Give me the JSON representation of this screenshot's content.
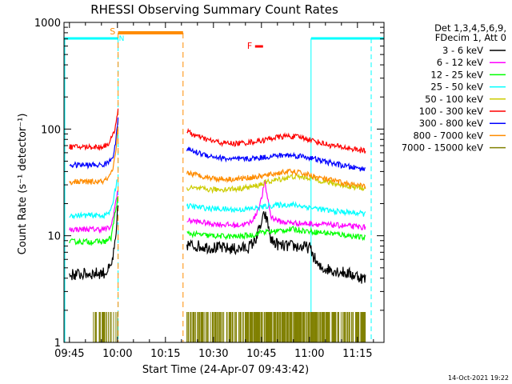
{
  "chart_data": {
    "type": "line",
    "title": "RHESSI Observing Summary Count Rates",
    "xlabel": "Start Time (24-Apr-07 09:43:42)",
    "ylabel": "Count Rate (s⁻¹ detector⁻¹)",
    "yscale": "log",
    "xlim_minutes": [
      -1.7,
      98.3
    ],
    "ylim": [
      1,
      1000
    ],
    "x_ticks": [
      {
        "label": "09:45",
        "t": 0
      },
      {
        "label": "10:00",
        "t": 15
      },
      {
        "label": "10:15",
        "t": 30
      },
      {
        "label": "10:30",
        "t": 45
      },
      {
        "label": "10:45",
        "t": 60
      },
      {
        "label": "11:00",
        "t": 75
      },
      {
        "label": "11:15",
        "t": 90
      }
    ],
    "y_ticks": [
      {
        "label": "1",
        "v": 1
      },
      {
        "label": "10",
        "v": 10
      },
      {
        "label": "100",
        "v": 100
      },
      {
        "label": "1000",
        "v": 1000
      }
    ],
    "legend": {
      "placement": "top-right",
      "header": [
        "Det 1,3,4,5,6,9,",
        "FDecim 1, Att 0"
      ]
    },
    "series": [
      {
        "name": "3 - 6 keV",
        "color": "#000000",
        "segments": [
          {
            "t": [
              0,
              11,
              13,
              14.5,
              15.2
            ],
            "v": [
              4.3,
              4.5,
              5,
              9,
              20
            ]
          },
          {
            "t": [
              36.7,
              44,
              52,
              56,
              58,
              60,
              61,
              62,
              63,
              66,
              70,
              73,
              75,
              78,
              82,
              86,
              90,
              92.5
            ],
            "v": [
              8.2,
              7.8,
              7.5,
              7.8,
              9,
              13,
              16,
              13,
              9,
              8,
              8,
              7.8,
              7.8,
              5,
              4.8,
              4.5,
              4.2,
              3.9
            ]
          }
        ]
      },
      {
        "name": "6 - 12 keV",
        "color": "#ff00ff",
        "segments": [
          {
            "t": [
              0,
              11,
              13,
              15
            ],
            "v": [
              11.5,
              11.5,
              12,
              25
            ]
          },
          {
            "t": [
              36.7,
              44,
              52,
              56,
              58,
              60,
              61,
              62,
              63,
              66,
              70,
              73,
              75,
              78,
              82,
              86,
              90,
              92.5
            ],
            "v": [
              14,
              13,
              12.5,
              13,
              15,
              22,
              32,
              22,
              15,
              13.5,
              13.2,
              13,
              13,
              12.8,
              12.6,
              12.4,
              12.1,
              12
            ]
          }
        ]
      },
      {
        "name": "12 - 25 keV",
        "color": "#00ff00",
        "segments": [
          {
            "t": [
              0,
              11,
              13,
              15
            ],
            "v": [
              8.8,
              8.8,
              9.5,
              22
            ]
          },
          {
            "t": [
              36.7,
              44,
              52,
              58,
              60,
              62,
              66,
              70,
              75,
              82,
              88,
              92.5
            ],
            "v": [
              10.5,
              10,
              9.8,
              10.2,
              11,
              10.8,
              11.2,
              11.5,
              11,
              10.5,
              10,
              9.5
            ]
          }
        ]
      },
      {
        "name": "25 - 50 keV",
        "color": "#00ffff",
        "segments": [
          {
            "t": [
              0,
              11,
              13,
              15
            ],
            "v": [
              15.5,
              15.5,
              17,
              35
            ]
          },
          {
            "t": [
              36.7,
              44,
              52,
              58,
              62,
              66,
              70,
              75,
              82,
              88,
              92.5
            ],
            "v": [
              19,
              18,
              17.5,
              18,
              19,
              19.5,
              19.5,
              18.5,
              17,
              16.5,
              16
            ]
          }
        ]
      },
      {
        "name": "50 - 100 keV",
        "color": "#cccc00",
        "segments": [
          {
            "t": [
              36.7,
              44,
              52,
              58,
              62,
              66,
              70,
              75,
              82,
              88,
              92.5
            ],
            "v": [
              28,
              27,
              27.5,
              29,
              32,
              34,
              36,
              35,
              31,
              29,
              28
            ]
          }
        ]
      },
      {
        "name": "100 - 300 keV",
        "color": "#ff0000",
        "segments": [
          {
            "t": [
              0,
              10,
              12,
              13.5,
              14.5,
              15.2
            ],
            "v": [
              68,
              68,
              72,
              85,
              110,
              160
            ]
          },
          {
            "t": [
              36.7,
              40,
              44,
              48,
              52,
              56,
              60,
              64,
              68,
              72,
              75,
              78,
              82,
              86,
              90,
              92.5
            ],
            "v": [
              95,
              85,
              78,
              74,
              73,
              75,
              78,
              83,
              86,
              84,
              80,
              75,
              70,
              67,
              64,
              62
            ]
          }
        ]
      },
      {
        "name": "300 - 800 keV",
        "color": "#0000ff",
        "segments": [
          {
            "t": [
              0,
              10,
              12,
              13.5,
              14.5,
              15.2
            ],
            "v": [
              46,
              46,
              48,
              55,
              75,
              130
            ]
          },
          {
            "t": [
              36.7,
              40,
              44,
              48,
              52,
              56,
              60,
              64,
              68,
              72,
              75,
              78,
              82,
              86,
              90,
              92.5
            ],
            "v": [
              65,
              60,
              56,
              53,
              52,
              52.5,
              54,
              56,
              57,
              56,
              54,
              51,
              48,
              45,
              43,
              42
            ]
          }
        ]
      },
      {
        "name": "800 - 7000 keV",
        "color": "#ff8c00",
        "segments": [
          {
            "t": [
              0,
              10,
              12,
              13.5,
              14.5,
              15.2
            ],
            "v": [
              32,
              32,
              34,
              40,
              60,
              110
            ]
          },
          {
            "t": [
              36.7,
              40,
              44,
              48,
              52,
              56,
              60,
              64,
              68,
              72,
              75,
              78,
              82,
              86,
              90,
              92.5
            ],
            "v": [
              39,
              37,
              35,
              34,
              34,
              35,
              36,
              38,
              40,
              39,
              37,
              35,
              33,
              31,
              29.5,
              29
            ]
          }
        ]
      },
      {
        "name": "7000 - 15000 keV",
        "color": "#808000",
        "segments": []
      }
    ],
    "annotations": [
      {
        "label": "S",
        "color": "#ff8c00",
        "t": 13.5,
        "level": 880
      },
      {
        "label": "N",
        "color": "#00ffff",
        "t": 16.3,
        "level": 600
      },
      {
        "label": "F",
        "color": "#ff0000",
        "t": 56.3,
        "level": 530
      }
    ],
    "orbit_markers": {
      "night_cyan": [
        [
          -1.7,
          15.2
        ],
        [
          75.5,
          98.3
        ]
      ],
      "saa_orange": [
        15.2,
        35.5
      ],
      "flare_red": [
        58,
        60.5
      ]
    },
    "footer_date": "14-Oct-2021 19:22",
    "colors": {
      "background": "#ffffff",
      "axes": "#000000",
      "night_line": "#00ffff",
      "saa": "#ff8c00",
      "flare": "#ff0000"
    }
  }
}
